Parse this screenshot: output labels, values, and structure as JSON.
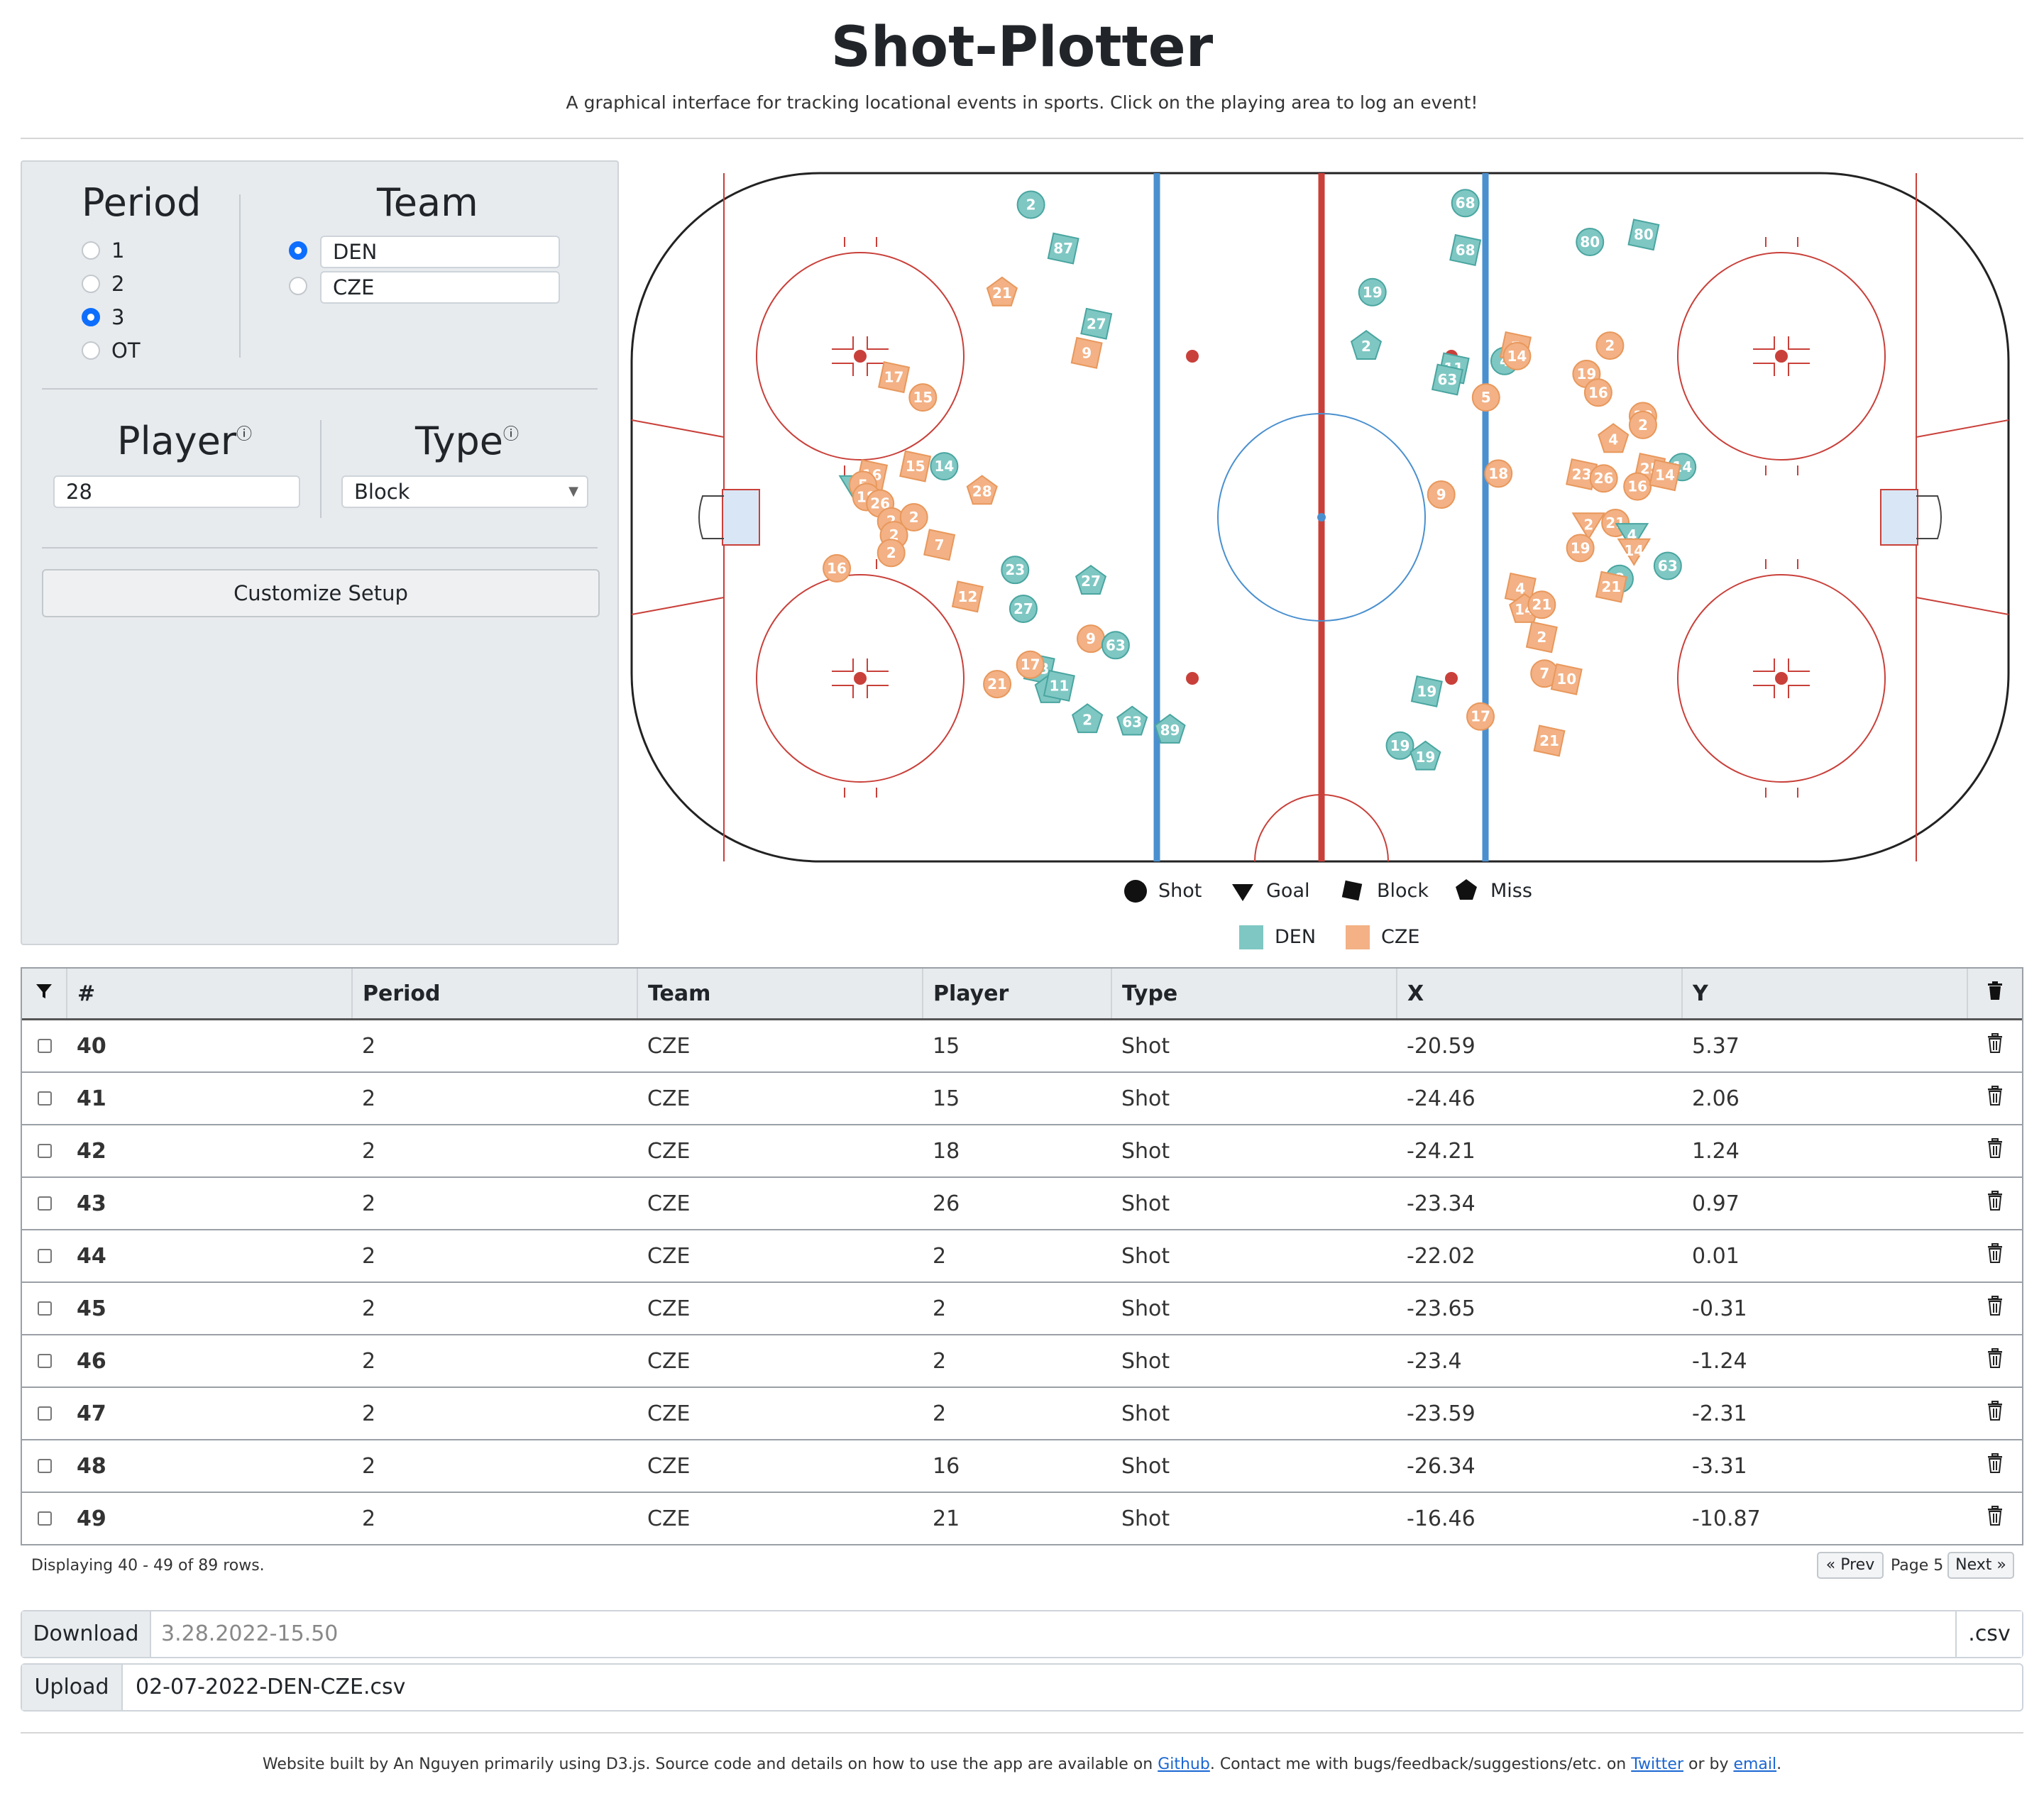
{
  "header": {
    "title": "Shot-Plotter",
    "subtitle": "A graphical interface for tracking locational events in sports. Click on the playing area to log an event!"
  },
  "controls": {
    "period_title": "Period",
    "periods": [
      "1",
      "2",
      "3",
      "OT"
    ],
    "selected_period": "3",
    "team_title": "Team",
    "teams": [
      "DEN",
      "CZE"
    ],
    "selected_team": "DEN",
    "player_title": "Player",
    "player_value": "28",
    "type_title": "Type",
    "type_value": "Block",
    "customize_label": "Customize Setup"
  },
  "legend": {
    "types": [
      "Shot",
      "Goal",
      "Block",
      "Miss"
    ],
    "teams": [
      "DEN",
      "CZE"
    ]
  },
  "colors": {
    "den": "#7fc7c3",
    "cze": "#f3b185",
    "den_stroke": "#49a5a0",
    "cze_stroke": "#e8985c",
    "blue_line": "#4a90cf",
    "red_line": "#c9403a",
    "accent": "#0d6efd"
  },
  "markers": [
    {
      "team": "den",
      "type": "shot",
      "num": "2",
      "x": -42.0,
      "y": -38.6
    },
    {
      "team": "den",
      "type": "block",
      "num": "87",
      "x": -37.3,
      "y": -33.2
    },
    {
      "team": "cze",
      "type": "miss",
      "num": "21",
      "x": -46.2,
      "y": -27.7
    },
    {
      "team": "den",
      "type": "block",
      "num": "27",
      "x": -32.5,
      "y": -23.9
    },
    {
      "team": "cze",
      "type": "block",
      "num": "9",
      "x": -33.9,
      "y": -20.3
    },
    {
      "team": "cze",
      "type": "block",
      "num": "17",
      "x": -61.9,
      "y": -17.3
    },
    {
      "team": "cze",
      "type": "shot",
      "num": "15",
      "x": -57.7,
      "y": -14.8
    },
    {
      "team": "cze",
      "type": "block",
      "num": "15",
      "x": -58.8,
      "y": -6.3
    },
    {
      "team": "den",
      "type": "shot",
      "num": "14",
      "x": -54.6,
      "y": -6.3
    },
    {
      "team": "cze",
      "type": "miss",
      "num": "28",
      "x": -49.1,
      "y": -3.2
    },
    {
      "team": "cze",
      "type": "block",
      "num": "16",
      "x": -65.1,
      "y": -5.2
    },
    {
      "team": "den",
      "type": "goal",
      "num": "4",
      "x": -67.5,
      "y": -3.7
    },
    {
      "team": "cze",
      "type": "shot",
      "num": "5",
      "x": -66.4,
      "y": -4.0
    },
    {
      "team": "cze",
      "type": "shot",
      "num": "18",
      "x": -65.9,
      "y": -2.5
    },
    {
      "team": "cze",
      "type": "shot",
      "num": "26",
      "x": -63.9,
      "y": -1.7
    },
    {
      "team": "cze",
      "type": "shot",
      "num": "2",
      "x": -62.3,
      "y": 0.5
    },
    {
      "team": "cze",
      "type": "shot",
      "num": "2",
      "x": -59.0,
      "y": 0.0
    },
    {
      "team": "cze",
      "type": "shot",
      "num": "2",
      "x": -61.9,
      "y": 2.2
    },
    {
      "team": "cze",
      "type": "block",
      "num": "7",
      "x": -55.3,
      "y": 3.4
    },
    {
      "team": "cze",
      "type": "shot",
      "num": "2",
      "x": -62.3,
      "y": 4.4
    },
    {
      "team": "cze",
      "type": "shot",
      "num": "16",
      "x": -70.2,
      "y": 6.3
    },
    {
      "team": "den",
      "type": "shot",
      "num": "23",
      "x": -44.3,
      "y": 6.5
    },
    {
      "team": "den",
      "type": "miss",
      "num": "27",
      "x": -33.3,
      "y": 7.9
    },
    {
      "team": "cze",
      "type": "block",
      "num": "12",
      "x": -51.2,
      "y": 9.8
    },
    {
      "team": "den",
      "type": "shot",
      "num": "27",
      "x": -43.1,
      "y": 11.3
    },
    {
      "team": "cze",
      "type": "shot",
      "num": "9",
      "x": -33.3,
      "y": 15.0
    },
    {
      "team": "den",
      "type": "shot",
      "num": "63",
      "x": -29.7,
      "y": 15.8
    },
    {
      "team": "den",
      "type": "block",
      "num": "63",
      "x": -40.8,
      "y": 18.7
    },
    {
      "team": "cze",
      "type": "shot",
      "num": "17",
      "x": -42.1,
      "y": 18.2
    },
    {
      "team": "cze",
      "type": "shot",
      "num": "21",
      "x": -46.9,
      "y": 20.6
    },
    {
      "team": "den",
      "type": "miss",
      "num": "1",
      "x": -39.2,
      "y": 21.3
    },
    {
      "team": "den",
      "type": "block",
      "num": "11",
      "x": -37.9,
      "y": 20.8
    },
    {
      "team": "den",
      "type": "miss",
      "num": "2",
      "x": -33.8,
      "y": 25.0
    },
    {
      "team": "den",
      "type": "miss",
      "num": "63",
      "x": -27.3,
      "y": 25.3
    },
    {
      "team": "den",
      "type": "miss",
      "num": "89",
      "x": -21.8,
      "y": 26.3
    },
    {
      "team": "den",
      "type": "shot",
      "num": "68",
      "x": 21.1,
      "y": -38.8
    },
    {
      "team": "den",
      "type": "block",
      "num": "68",
      "x": 21.1,
      "y": -33.0
    },
    {
      "team": "den",
      "type": "shot",
      "num": "19",
      "x": 7.6,
      "y": -27.8
    },
    {
      "team": "den",
      "type": "miss",
      "num": "2",
      "x": 6.7,
      "y": -21.1
    },
    {
      "team": "den",
      "type": "block",
      "num": "11",
      "x": 19.4,
      "y": -18.4
    },
    {
      "team": "den",
      "type": "block",
      "num": "63",
      "x": 18.5,
      "y": -17.0
    },
    {
      "team": "den",
      "type": "shot",
      "num": "4",
      "x": 26.8,
      "y": -19.3
    },
    {
      "team": "cze",
      "type": "block",
      "num": "5",
      "x": 28.4,
      "y": -21.0
    },
    {
      "team": "cze",
      "type": "shot",
      "num": "14",
      "x": 28.6,
      "y": -19.9
    },
    {
      "team": "cze",
      "type": "shot",
      "num": "5",
      "x": 24.1,
      "y": -14.8
    },
    {
      "team": "den",
      "type": "shot",
      "num": "80",
      "x": 39.2,
      "y": -34.0
    },
    {
      "team": "den",
      "type": "block",
      "num": "80",
      "x": 47.0,
      "y": -34.9
    },
    {
      "team": "cze",
      "type": "shot",
      "num": "2",
      "x": 42.1,
      "y": -21.2
    },
    {
      "team": "cze",
      "type": "shot",
      "num": "19",
      "x": 38.7,
      "y": -17.7
    },
    {
      "team": "cze",
      "type": "shot",
      "num": "16",
      "x": 40.4,
      "y": -15.4
    },
    {
      "team": "cze",
      "type": "shot",
      "num": "18",
      "x": 46.9,
      "y": -12.5
    },
    {
      "team": "cze",
      "type": "shot",
      "num": "2",
      "x": 46.9,
      "y": -11.4
    },
    {
      "team": "cze",
      "type": "miss",
      "num": "4",
      "x": 42.6,
      "y": -9.6
    },
    {
      "team": "cze",
      "type": "shot",
      "num": "18",
      "x": 25.9,
      "y": -5.4
    },
    {
      "team": "cze",
      "type": "shot",
      "num": "9",
      "x": 17.6,
      "y": -2.8
    },
    {
      "team": "cze",
      "type": "block",
      "num": "23",
      "x": 38.0,
      "y": -5.3
    },
    {
      "team": "cze",
      "type": "shot",
      "num": "26",
      "x": 41.2,
      "y": -4.8
    },
    {
      "team": "cze",
      "type": "block",
      "num": "25",
      "x": 47.9,
      "y": -6.0
    },
    {
      "team": "den",
      "type": "shot",
      "num": "14",
      "x": 52.6,
      "y": -6.2
    },
    {
      "team": "cze",
      "type": "shot",
      "num": "16",
      "x": 46.1,
      "y": -3.8
    },
    {
      "team": "cze",
      "type": "block",
      "num": "14",
      "x": 50.1,
      "y": -5.2
    },
    {
      "team": "cze",
      "type": "goal",
      "num": "2",
      "x": 39.0,
      "y": 0.9
    },
    {
      "team": "cze",
      "type": "shot",
      "num": "21",
      "x": 42.9,
      "y": 0.7
    },
    {
      "team": "den",
      "type": "goal",
      "num": "4",
      "x": 45.3,
      "y": 2.2
    },
    {
      "team": "cze",
      "type": "shot",
      "num": "19",
      "x": 37.8,
      "y": 3.8
    },
    {
      "team": "cze",
      "type": "goal",
      "num": "14",
      "x": 45.6,
      "y": 4.1
    },
    {
      "team": "den",
      "type": "shot",
      "num": "63",
      "x": 50.5,
      "y": 6.0
    },
    {
      "team": "den",
      "type": "shot",
      "num": "8",
      "x": 43.5,
      "y": 7.6
    },
    {
      "team": "cze",
      "type": "block",
      "num": "21",
      "x": 42.3,
      "y": 8.6
    },
    {
      "team": "cze",
      "type": "block",
      "num": "4",
      "x": 29.1,
      "y": 8.8
    },
    {
      "team": "cze",
      "type": "miss",
      "num": "14",
      "x": 29.7,
      "y": 11.4
    },
    {
      "team": "cze",
      "type": "shot",
      "num": "21",
      "x": 32.2,
      "y": 10.8
    },
    {
      "team": "cze",
      "type": "block",
      "num": "2",
      "x": 32.2,
      "y": 14.8
    },
    {
      "team": "cze",
      "type": "shot",
      "num": "7",
      "x": 32.6,
      "y": 19.3
    },
    {
      "team": "cze",
      "type": "block",
      "num": "10",
      "x": 35.8,
      "y": 20.0
    },
    {
      "team": "den",
      "type": "block",
      "num": "19",
      "x": 15.5,
      "y": 21.5
    },
    {
      "team": "cze",
      "type": "shot",
      "num": "17",
      "x": 23.3,
      "y": 24.6
    },
    {
      "team": "cze",
      "type": "block",
      "num": "21",
      "x": 33.3,
      "y": 27.6
    },
    {
      "team": "den",
      "type": "shot",
      "num": "19",
      "x": 11.6,
      "y": 28.2
    },
    {
      "team": "den",
      "type": "miss",
      "num": "19",
      "x": 15.3,
      "y": 29.6
    }
  ],
  "table": {
    "headers": [
      "#",
      "Period",
      "Team",
      "Player",
      "Type",
      "X",
      "Y"
    ],
    "rows": [
      {
        "id": "40",
        "period": "2",
        "team": "CZE",
        "player": "15",
        "type": "Shot",
        "x": "-20.59",
        "y": "5.37"
      },
      {
        "id": "41",
        "period": "2",
        "team": "CZE",
        "player": "15",
        "type": "Shot",
        "x": "-24.46",
        "y": "2.06"
      },
      {
        "id": "42",
        "period": "2",
        "team": "CZE",
        "player": "18",
        "type": "Shot",
        "x": "-24.21",
        "y": "1.24"
      },
      {
        "id": "43",
        "period": "2",
        "team": "CZE",
        "player": "26",
        "type": "Shot",
        "x": "-23.34",
        "y": "0.97"
      },
      {
        "id": "44",
        "period": "2",
        "team": "CZE",
        "player": "2",
        "type": "Shot",
        "x": "-22.02",
        "y": "0.01"
      },
      {
        "id": "45",
        "period": "2",
        "team": "CZE",
        "player": "2",
        "type": "Shot",
        "x": "-23.65",
        "y": "-0.31"
      },
      {
        "id": "46",
        "period": "2",
        "team": "CZE",
        "player": "2",
        "type": "Shot",
        "x": "-23.4",
        "y": "-1.24"
      },
      {
        "id": "47",
        "period": "2",
        "team": "CZE",
        "player": "2",
        "type": "Shot",
        "x": "-23.59",
        "y": "-2.31"
      },
      {
        "id": "48",
        "period": "2",
        "team": "CZE",
        "player": "16",
        "type": "Shot",
        "x": "-26.34",
        "y": "-3.31"
      },
      {
        "id": "49",
        "period": "2",
        "team": "CZE",
        "player": "21",
        "type": "Shot",
        "x": "-16.46",
        "y": "-10.87"
      }
    ],
    "status": "Displaying 40 - 49 of 89 rows.",
    "prev_label": "Prev",
    "page_label": "Page 5",
    "next_label": "Next"
  },
  "download": {
    "label": "Download",
    "placeholder": "3.28.2022-15.50",
    "suffix": ".csv"
  },
  "upload": {
    "label": "Upload",
    "value": "02-07-2022-DEN-CZE.csv"
  },
  "footer": {
    "text1": "Website built by An Nguyen primarily using D3.js. Source code and details on how to use the app are available on ",
    "link_github": "Github",
    "text2": ". Contact me with bugs/feedback/suggestions/etc. on ",
    "link_twitter": "Twitter",
    "text3": " or by ",
    "link_email": "email",
    "text4": "."
  }
}
